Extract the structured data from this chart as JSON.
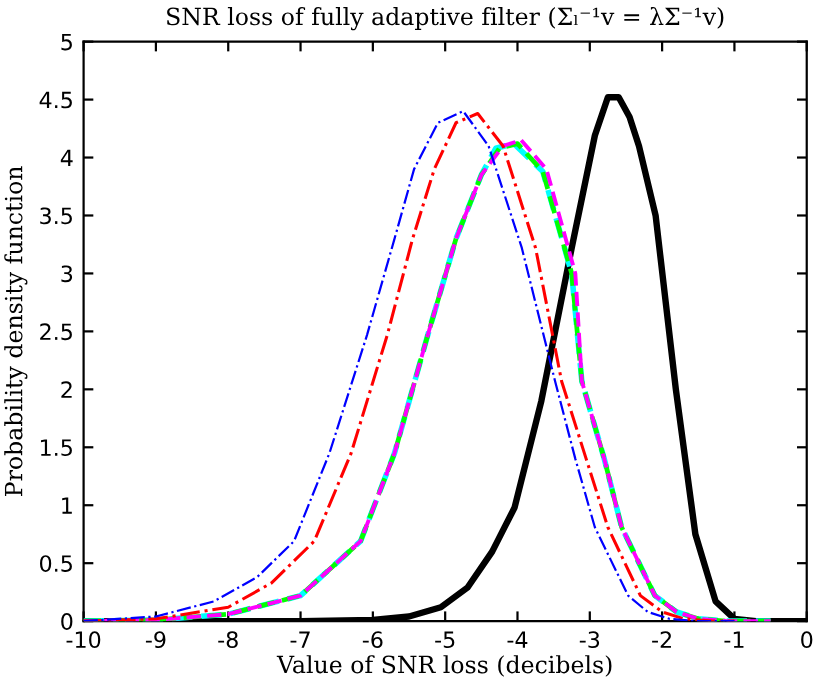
{
  "chart_data": {
    "type": "line",
    "title": "SNR loss of fully adaptive filter (Σₗ⁻¹v = λΣ⁻¹v)",
    "xlabel": "Value of SNR loss (decibels)",
    "ylabel": "Probability density function",
    "xlim": [
      -10,
      0
    ],
    "ylim": [
      0,
      5
    ],
    "xticks": [
      -10,
      -9,
      -8,
      -7,
      -6,
      -5,
      -4,
      -3,
      -2,
      -1,
      0
    ],
    "yticks": [
      0,
      0.5,
      1,
      1.5,
      2,
      2.5,
      3,
      3.5,
      4,
      4.5,
      5
    ],
    "grid": false,
    "legend": false,
    "series": [
      {
        "color": "#0000ff",
        "line_style": "dashdot",
        "x": [
          -10,
          -9,
          -8.2,
          -7.6,
          -7.09,
          -6.6,
          -6.08,
          -5.7,
          -5.43,
          -5.1,
          -4.75,
          -4.4,
          -3.94,
          -3.48,
          -3.2,
          -2.93,
          -2.47,
          -2.2,
          -1.9,
          -1.5,
          -1
        ],
        "values": [
          0.0,
          0.04,
          0.17,
          0.38,
          0.69,
          1.45,
          2.47,
          3.3,
          3.9,
          4.3,
          4.4,
          4.1,
          3.22,
          2.07,
          1.4,
          0.81,
          0.22,
          0.08,
          0.02,
          0,
          0
        ]
      },
      {
        "color": "#ff0000",
        "line_style": "dashdot",
        "x": [
          -10,
          -9,
          -8,
          -7.4,
          -6.81,
          -6.3,
          -5.8,
          -5.45,
          -5.15,
          -4.85,
          -4.55,
          -4.2,
          -3.75,
          -3.39,
          -3.05,
          -2.75,
          -2.3,
          -2.0,
          -1.7,
          -1.3,
          -1
        ],
        "values": [
          0.0,
          0.02,
          0.12,
          0.33,
          0.69,
          1.45,
          2.47,
          3.3,
          3.9,
          4.3,
          4.38,
          4.1,
          3.22,
          2.07,
          1.4,
          0.81,
          0.22,
          0.08,
          0.02,
          0,
          0
        ]
      },
      {
        "color": "#ff00ff",
        "line_style": "dashed",
        "x": [
          -10,
          -9,
          -8,
          -7,
          -6.17,
          -5.7,
          -5.24,
          -4.85,
          -4.5,
          -4.2,
          -3.95,
          -3.6,
          -3.2,
          -3.11,
          -2.8,
          -2.56,
          -2.1,
          -1.8,
          -1.5,
          -1.1,
          -0.5
        ],
        "values": [
          0.0,
          0.01,
          0.06,
          0.22,
          0.69,
          1.45,
          2.47,
          3.3,
          3.85,
          4.1,
          4.15,
          3.9,
          3.0,
          2.07,
          1.4,
          0.81,
          0.22,
          0.08,
          0.02,
          0,
          0
        ]
      },
      {
        "color": "#00ff00",
        "line_style": "dashed",
        "x": [
          -10,
          -9,
          -8,
          -7,
          -6.17,
          -5.7,
          -5.24,
          -4.85,
          -4.5,
          -4.25,
          -4.0,
          -3.65,
          -3.25,
          -3.11,
          -2.8,
          -2.56,
          -2.1,
          -1.8,
          -1.5,
          -1.1,
          -0.5
        ],
        "values": [
          0.0,
          0.01,
          0.06,
          0.22,
          0.69,
          1.45,
          2.47,
          3.3,
          3.85,
          4.08,
          4.12,
          3.88,
          3.0,
          2.07,
          1.4,
          0.81,
          0.22,
          0.08,
          0.02,
          0,
          0
        ]
      },
      {
        "color": "#00ffff",
        "line_style": "dashed",
        "x": [
          -10,
          -9,
          -8,
          -7,
          -6.17,
          -5.7,
          -5.24,
          -4.85,
          -4.5,
          -4.3,
          -4.05,
          -3.65,
          -3.25,
          -3.11,
          -2.8,
          -2.56,
          -2.1,
          -1.8,
          -1.5,
          -1.1,
          -0.5
        ],
        "values": [
          0.0,
          0.01,
          0.06,
          0.22,
          0.69,
          1.45,
          2.47,
          3.3,
          3.85,
          4.08,
          4.12,
          3.88,
          3.0,
          2.07,
          1.4,
          0.81,
          0.22,
          0.08,
          0.02,
          0,
          0
        ]
      },
      {
        "color": "#000000",
        "line_style": "solid",
        "x": [
          -10,
          -7,
          -6,
          -5.5,
          -5.06,
          -4.69,
          -4.35,
          -4.04,
          -3.67,
          -3.25,
          -2.93,
          -2.75,
          -2.6,
          -2.45,
          -2.32,
          -2.09,
          -1.81,
          -1.54,
          -1.26,
          -1.0,
          -0.7,
          0
        ],
        "values": [
          0,
          0,
          0.01,
          0.04,
          0.12,
          0.29,
          0.6,
          0.98,
          1.9,
          3.22,
          4.19,
          4.52,
          4.52,
          4.35,
          4.1,
          3.5,
          2.0,
          0.75,
          0.17,
          0.02,
          0,
          0
        ]
      }
    ]
  }
}
